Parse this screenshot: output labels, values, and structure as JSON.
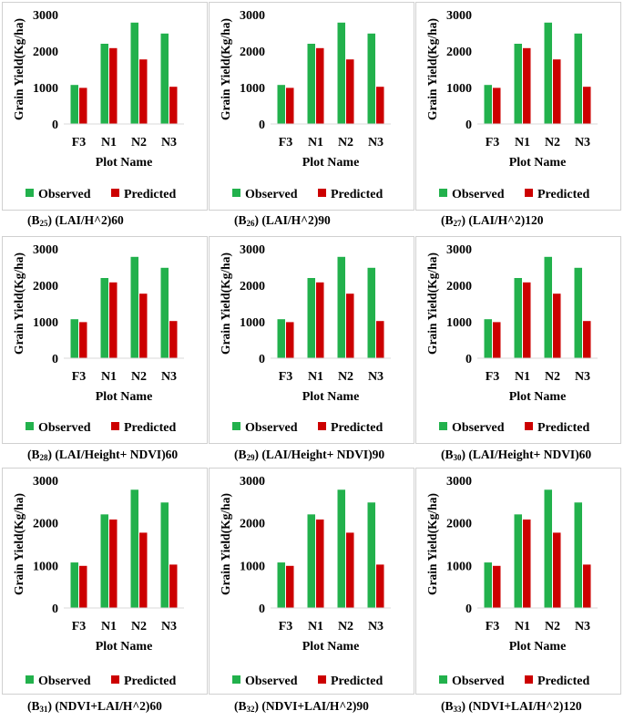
{
  "colors": {
    "observed": "#22B14C",
    "predicted": "#CC0000"
  },
  "captions": [
    {
      "prefix": "(B",
      "num": "25",
      "rest": ") (LAI/H^2)60"
    },
    {
      "prefix": "(B",
      "num": "26",
      "rest": ") (LAI/H^2)90"
    },
    {
      "prefix": "(B",
      "num": "27",
      "rest": ") (LAI/H^2)120"
    },
    {
      "prefix": "(B",
      "num": "28",
      "rest": ") (LAI/Height+ NDVI)60"
    },
    {
      "prefix": "(B",
      "num": "29",
      "rest": ") (LAI/Height+ NDVI)90"
    },
    {
      "prefix": "(B",
      "num": "30",
      "rest": ") (LAI/Height+ NDVI)60"
    },
    {
      "prefix": "(B",
      "num": "31",
      "rest": ") (NDVI+LAI/H^2)60"
    },
    {
      "prefix": "(B",
      "num": "32",
      "rest": ") (NDVI+LAI/H^2)90"
    },
    {
      "prefix": "(B",
      "num": "33",
      "rest": ") (NDVI+LAI/H^2)120"
    }
  ],
  "chart_data": [
    {
      "type": "bar",
      "categories": [
        "F3",
        "N1",
        "N2",
        "N3"
      ],
      "xlabel": "Plot Name",
      "ylabel": "Grain Yield(Kg/ha)",
      "ylim": [
        0,
        3000
      ],
      "yticks": [
        0,
        1000,
        2000,
        3000
      ],
      "legend_position": "bottom",
      "grid": false,
      "series": [
        {
          "name": "Observed",
          "values": [
            1070,
            2200,
            2780,
            2480
          ]
        },
        {
          "name": "Predicted",
          "values": [
            990,
            2080,
            1770,
            1020
          ]
        }
      ]
    },
    {
      "type": "bar",
      "categories": [
        "F3",
        "N1",
        "N2",
        "N3"
      ],
      "xlabel": "Plot Name",
      "ylabel": "Grain Yield(Kg/ha)",
      "ylim": [
        0,
        3000
      ],
      "yticks": [
        0,
        1000,
        2000,
        3000
      ],
      "legend_position": "bottom",
      "grid": false,
      "series": [
        {
          "name": "Observed",
          "values": [
            1070,
            2200,
            2780,
            2480
          ]
        },
        {
          "name": "Predicted",
          "values": [
            990,
            2080,
            1770,
            1020
          ]
        }
      ]
    },
    {
      "type": "bar",
      "categories": [
        "F3",
        "N1",
        "N2",
        "N3"
      ],
      "xlabel": "Plot Name",
      "ylabel": "Grain Yield(Kg/ha)",
      "ylim": [
        0,
        3000
      ],
      "yticks": [
        0,
        1000,
        2000,
        3000
      ],
      "legend_position": "bottom",
      "grid": false,
      "series": [
        {
          "name": "Observed",
          "values": [
            1070,
            2200,
            2780,
            2480
          ]
        },
        {
          "name": "Predicted",
          "values": [
            990,
            2080,
            1770,
            1020
          ]
        }
      ]
    },
    {
      "type": "bar",
      "categories": [
        "F3",
        "N1",
        "N2",
        "N3"
      ],
      "xlabel": "Plot Name",
      "ylabel": "Grain Yield(Kg/ha)",
      "ylim": [
        0,
        3000
      ],
      "yticks": [
        0,
        1000,
        2000,
        3000
      ],
      "legend_position": "bottom",
      "grid": false,
      "series": [
        {
          "name": "Observed",
          "values": [
            1070,
            2200,
            2780,
            2480
          ]
        },
        {
          "name": "Predicted",
          "values": [
            990,
            2080,
            1770,
            1020
          ]
        }
      ]
    },
    {
      "type": "bar",
      "categories": [
        "F3",
        "N1",
        "N2",
        "N3"
      ],
      "xlabel": "Plot Name",
      "ylabel": "Grain Yield(Kg/ha)",
      "ylim": [
        0,
        3000
      ],
      "yticks": [
        0,
        1000,
        2000,
        3000
      ],
      "legend_position": "bottom",
      "grid": false,
      "series": [
        {
          "name": "Observed",
          "values": [
            1070,
            2200,
            2780,
            2480
          ]
        },
        {
          "name": "Predicted",
          "values": [
            990,
            2080,
            1770,
            1020
          ]
        }
      ]
    },
    {
      "type": "bar",
      "categories": [
        "F3",
        "N1",
        "N2",
        "N3"
      ],
      "xlabel": "Plot Name",
      "ylabel": "Grain Yield(Kg/ha)",
      "ylim": [
        0,
        3000
      ],
      "yticks": [
        0,
        1000,
        2000,
        3000
      ],
      "legend_position": "bottom",
      "grid": false,
      "series": [
        {
          "name": "Observed",
          "values": [
            1070,
            2200,
            2780,
            2480
          ]
        },
        {
          "name": "Predicted",
          "values": [
            990,
            2080,
            1770,
            1020
          ]
        }
      ]
    },
    {
      "type": "bar",
      "categories": [
        "F3",
        "N1",
        "N2",
        "N3"
      ],
      "xlabel": "Plot Name",
      "ylabel": "Grain Yield(Kg/ha)",
      "ylim": [
        0,
        3000
      ],
      "yticks": [
        0,
        1000,
        2000,
        3000
      ],
      "legend_position": "bottom",
      "grid": false,
      "series": [
        {
          "name": "Observed",
          "values": [
            1070,
            2200,
            2780,
            2480
          ]
        },
        {
          "name": "Predicted",
          "values": [
            990,
            2080,
            1770,
            1020
          ]
        }
      ]
    },
    {
      "type": "bar",
      "categories": [
        "F3",
        "N1",
        "N2",
        "N3"
      ],
      "xlabel": "Plot Name",
      "ylabel": "Grain Yield(Kg/ha)",
      "ylim": [
        0,
        3000
      ],
      "yticks": [
        0,
        1000,
        2000,
        3000
      ],
      "legend_position": "bottom",
      "grid": false,
      "series": [
        {
          "name": "Observed",
          "values": [
            1070,
            2200,
            2780,
            2480
          ]
        },
        {
          "name": "Predicted",
          "values": [
            990,
            2080,
            1770,
            1020
          ]
        }
      ]
    },
    {
      "type": "bar",
      "categories": [
        "F3",
        "N1",
        "N2",
        "N3"
      ],
      "xlabel": "Plot Name",
      "ylabel": "Grain Yield(Kg/ha)",
      "ylim": [
        0,
        3000
      ],
      "yticks": [
        0,
        1000,
        2000,
        3000
      ],
      "legend_position": "bottom",
      "grid": false,
      "series": [
        {
          "name": "Observed",
          "values": [
            1070,
            2200,
            2780,
            2480
          ]
        },
        {
          "name": "Predicted",
          "values": [
            990,
            2080,
            1770,
            1020
          ]
        }
      ]
    }
  ]
}
